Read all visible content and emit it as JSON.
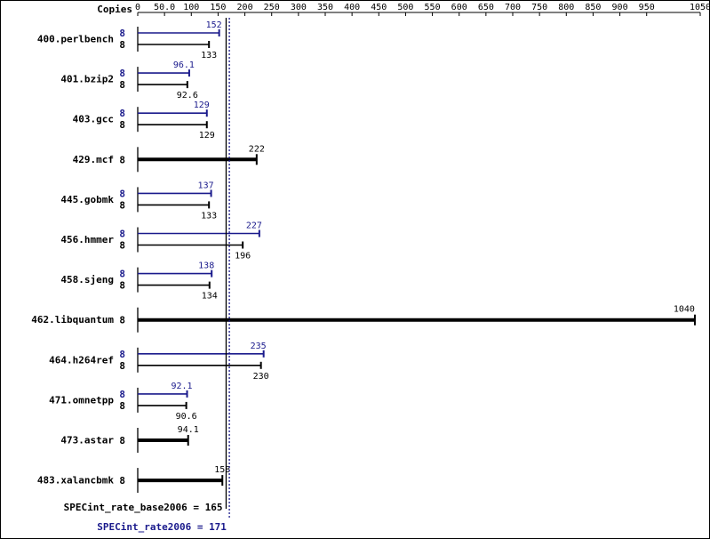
{
  "chart_data": {
    "type": "bar",
    "orientation": "horizontal",
    "copies_label": "Copies",
    "x_ticks": [
      "0",
      "50.0",
      "100",
      "150",
      "200",
      "250",
      "300",
      "350",
      "400",
      "450",
      "500",
      "550",
      "600",
      "650",
      "700",
      "750",
      "800",
      "850",
      "900",
      "950",
      "1050"
    ],
    "xlim": [
      0,
      1050
    ],
    "colors": {
      "peak": "#1a1a8c",
      "base": "#000000"
    },
    "benchmarks": [
      {
        "name": "400.perlbench",
        "peak_copies": "8",
        "peak": 152,
        "peak_label": "152",
        "base_copies": "8",
        "base": 133,
        "base_label": "133"
      },
      {
        "name": "401.bzip2",
        "peak_copies": "8",
        "peak": 96.1,
        "peak_label": "96.1",
        "base_copies": "8",
        "base": 92.6,
        "base_label": "92.6"
      },
      {
        "name": "403.gcc",
        "peak_copies": "8",
        "peak": 129,
        "peak_label": "129",
        "base_copies": "8",
        "base": 129,
        "base_label": "129"
      },
      {
        "name": "429.mcf",
        "single": true,
        "copies": "8",
        "value": 222,
        "label": "222"
      },
      {
        "name": "445.gobmk",
        "peak_copies": "8",
        "peak": 137,
        "peak_label": "137",
        "base_copies": "8",
        "base": 133,
        "base_label": "133"
      },
      {
        "name": "456.hmmer",
        "peak_copies": "8",
        "peak": 227,
        "peak_label": "227",
        "base_copies": "8",
        "base": 196,
        "base_label": "196"
      },
      {
        "name": "458.sjeng",
        "peak_copies": "8",
        "peak": 138,
        "peak_label": "138",
        "base_copies": "8",
        "base": 134,
        "base_label": "134"
      },
      {
        "name": "462.libquantum",
        "single": true,
        "copies": "8",
        "value": 1040,
        "label": "1040"
      },
      {
        "name": "464.h264ref",
        "peak_copies": "8",
        "peak": 235,
        "peak_label": "235",
        "base_copies": "8",
        "base": 230,
        "base_label": "230"
      },
      {
        "name": "471.omnetpp",
        "peak_copies": "8",
        "peak": 92.1,
        "peak_label": "92.1",
        "base_copies": "8",
        "base": 90.6,
        "base_label": "90.6"
      },
      {
        "name": "473.astar",
        "single": true,
        "copies": "8",
        "value": 94.1,
        "label": "94.1"
      },
      {
        "name": "483.xalancbmk",
        "single": true,
        "copies": "8",
        "value": 158,
        "label": "158"
      }
    ],
    "base_metric": {
      "label": "SPECint_rate_base2006 = 165",
      "value": 165
    },
    "peak_metric": {
      "label": "SPECint_rate2006 = 171",
      "value": 171
    }
  }
}
